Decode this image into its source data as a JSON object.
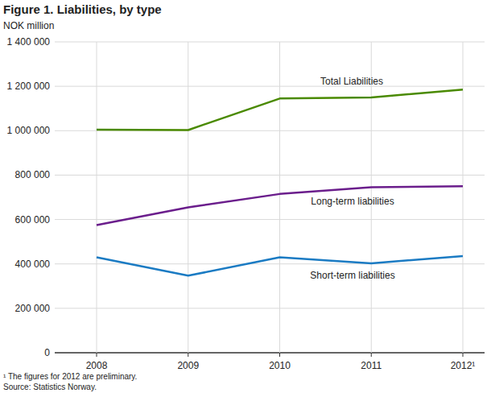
{
  "chart_data": {
    "type": "line",
    "title": "Figure 1. Liabilities, by type",
    "y_label": "NOK million",
    "categories": [
      "2008",
      "2009",
      "2010",
      "2011",
      "2012¹"
    ],
    "series": [
      {
        "name": "Total Liabilities",
        "color": "#4a8a00",
        "values": [
          1005000,
          1003000,
          1145000,
          1150000,
          1185000
        ]
      },
      {
        "name": "Long-term liabilities",
        "color": "#6b1e8c",
        "values": [
          575000,
          655000,
          715000,
          745000,
          750000
        ]
      },
      {
        "name": "Short-term liabilities",
        "color": "#1b7bc3",
        "values": [
          430000,
          347000,
          430000,
          403000,
          435000
        ]
      }
    ],
    "ylim": [
      0,
      1400000
    ],
    "yticks": [
      0,
      {
        "value": 200000,
        "label": "200 000"
      },
      {
        "value": 400000,
        "label": "400 000"
      },
      {
        "value": 600000,
        "label": "600 000"
      },
      {
        "value": 800000,
        "label": "800 000"
      },
      {
        "value": 1000000,
        "label": "1 000 000"
      },
      {
        "value": 1200000,
        "label": "1 200 000"
      },
      {
        "value": 1400000,
        "label": "1 400 000"
      }
    ],
    "grid": true,
    "notes": "¹ The figures for 2012 are preliminary.",
    "source": "Source: Statistics Norway."
  }
}
